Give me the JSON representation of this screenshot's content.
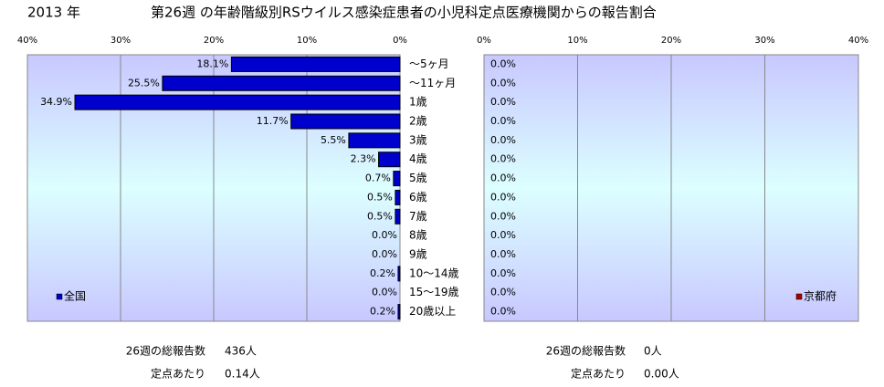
{
  "header": {
    "year": "2013 年",
    "title": "第26週 の年齢階級別RSウイルス感染症患者の小児科定点医療機関からの報告割合"
  },
  "chart_data": [
    {
      "type": "bar",
      "orientation": "horizontal",
      "x_reversed": true,
      "categories": [
        "～5ヶ月",
        "～11ヶ月",
        "1歳",
        "2歳",
        "3歳",
        "4歳",
        "5歳",
        "6歳",
        "7歳",
        "8歳",
        "9歳",
        "10～14歳",
        "15～19歳",
        "20歳以上"
      ],
      "series": [
        {
          "name": "全国",
          "color": "#0000cc",
          "values": [
            18.1,
            25.5,
            34.9,
            11.7,
            5.5,
            2.3,
            0.7,
            0.5,
            0.5,
            0,
            0,
            0.2,
            0,
            0.2
          ],
          "value_labels": [
            "18.1%",
            "25.5%",
            "34.9%",
            "11.7%",
            "5.5%",
            "2.3%",
            "0.7%",
            "0.5%",
            "0.5%",
            "0.0%",
            "0.0%",
            "0.2%",
            "0.0%",
            "0.2%"
          ]
        }
      ],
      "xlim": [
        0,
        40
      ],
      "xticks": [
        {
          "value": 0,
          "label": "0%"
        },
        {
          "value": 10,
          "label": "10%"
        },
        {
          "value": 20,
          "label": "20%"
        },
        {
          "value": 30,
          "label": "30%"
        },
        {
          "value": 40,
          "label": "40%"
        }
      ],
      "grid": true,
      "legend": "lower left",
      "summary": [
        {
          "label": "26週の総報告数",
          "value": "436人"
        },
        {
          "label": "定点あたり",
          "value": "0.14人"
        }
      ]
    },
    {
      "type": "bar",
      "orientation": "horizontal",
      "x_reversed": false,
      "series": [
        {
          "name": "京都府",
          "color": "#aa0000",
          "values": [
            0,
            0,
            0,
            0,
            0,
            0,
            0,
            0,
            0,
            0,
            0,
            0,
            0,
            0
          ],
          "value_labels": [
            "0.0%",
            "0.0%",
            "0.0%",
            "0.0%",
            "0.0%",
            "0.0%",
            "0.0%",
            "0.0%",
            "0.0%",
            "0.0%",
            "0.0%",
            "0.0%",
            "0.0%",
            "0.0%"
          ]
        }
      ],
      "xlim": [
        0,
        40
      ],
      "xticks": [
        {
          "value": 0,
          "label": "0%"
        },
        {
          "value": 10,
          "label": "10%"
        },
        {
          "value": 20,
          "label": "20%"
        },
        {
          "value": 30,
          "label": "30%"
        },
        {
          "value": 40,
          "label": "40%"
        }
      ],
      "grid": true,
      "legend": "lower right",
      "summary": [
        {
          "label": "26週の総報告数",
          "value": "0人"
        },
        {
          "label": "定点あたり",
          "value": "0.00人"
        }
      ]
    }
  ]
}
